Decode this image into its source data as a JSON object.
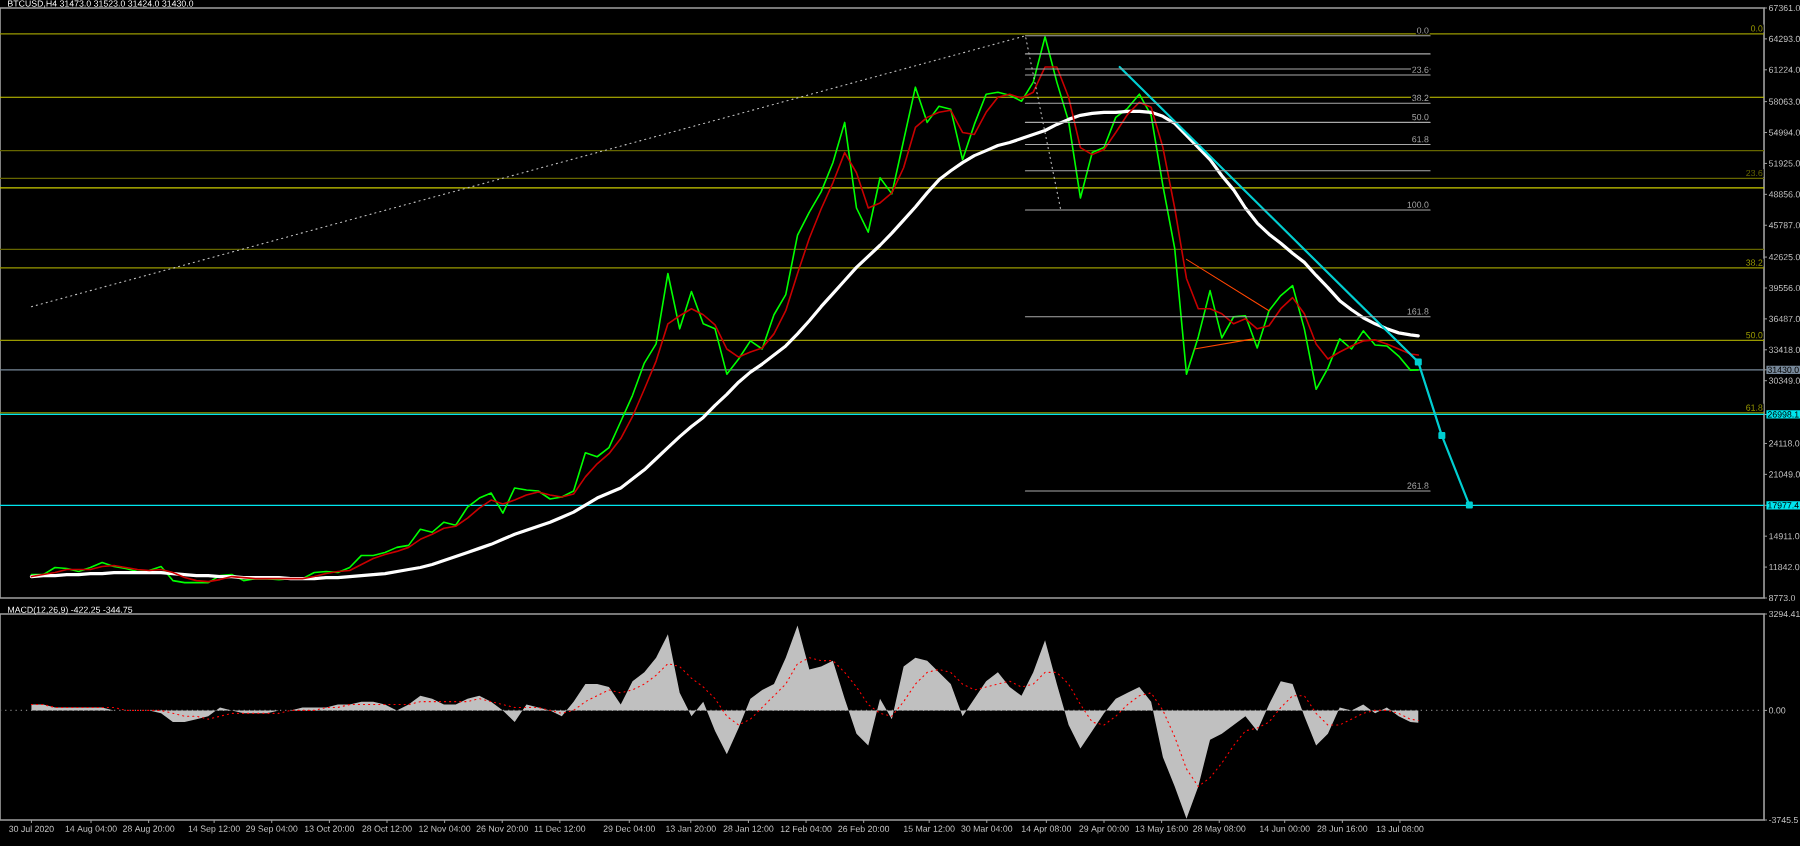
{
  "chart_data": [
    {
      "type": "line",
      "title": "BTCUSD,H4 31473.0 31523.0 31424.0 31430.0",
      "x": [
        "2020-07-30",
        "2020-08-02",
        "2020-08-05",
        "2020-08-08",
        "2020-08-11",
        "2020-08-14",
        "2020-08-17",
        "2020-08-20",
        "2020-08-23",
        "2020-08-26",
        "2020-08-29",
        "2020-09-01",
        "2020-09-04",
        "2020-09-07",
        "2020-09-10",
        "2020-09-13",
        "2020-09-16",
        "2020-09-19",
        "2020-09-22",
        "2020-09-25",
        "2020-09-28",
        "2020-10-01",
        "2020-10-04",
        "2020-10-07",
        "2020-10-10",
        "2020-10-13",
        "2020-10-16",
        "2020-10-19",
        "2020-10-22",
        "2020-10-25",
        "2020-10-28",
        "2020-10-31",
        "2020-11-03",
        "2020-11-06",
        "2020-11-09",
        "2020-11-12",
        "2020-11-15",
        "2020-11-18",
        "2020-11-21",
        "2020-11-24",
        "2020-11-27",
        "2020-11-30",
        "2020-12-03",
        "2020-12-06",
        "2020-12-09",
        "2020-12-12",
        "2020-12-15",
        "2020-12-18",
        "2020-12-21",
        "2020-12-24",
        "2020-12-27",
        "2020-12-30",
        "2021-01-02",
        "2021-01-05",
        "2021-01-08",
        "2021-01-11",
        "2021-01-14",
        "2021-01-17",
        "2021-01-20",
        "2021-01-23",
        "2021-01-26",
        "2021-01-29",
        "2021-02-01",
        "2021-02-04",
        "2021-02-07",
        "2021-02-10",
        "2021-02-13",
        "2021-02-16",
        "2021-02-19",
        "2021-02-22",
        "2021-02-25",
        "2021-02-28",
        "2021-03-03",
        "2021-03-06",
        "2021-03-09",
        "2021-03-12",
        "2021-03-15",
        "2021-03-18",
        "2021-03-21",
        "2021-03-24",
        "2021-03-27",
        "2021-03-30",
        "2021-04-02",
        "2021-04-05",
        "2021-04-08",
        "2021-04-11",
        "2021-04-14",
        "2021-04-17",
        "2021-04-20",
        "2021-04-23",
        "2021-04-26",
        "2021-04-29",
        "2021-05-02",
        "2021-05-05",
        "2021-05-08",
        "2021-05-11",
        "2021-05-14",
        "2021-05-17",
        "2021-05-20",
        "2021-05-23",
        "2021-05-26",
        "2021-05-29",
        "2021-06-01",
        "2021-06-04",
        "2021-06-07",
        "2021-06-10",
        "2021-06-13",
        "2021-06-16",
        "2021-06-19",
        "2021-06-22",
        "2021-06-25",
        "2021-06-28",
        "2021-07-01",
        "2021-07-04",
        "2021-07-07",
        "2021-07-10",
        "2021-07-13",
        "2021-07-16",
        "2021-07-18"
      ],
      "xlim": [
        "2020-07-22",
        "2021-10-14"
      ],
      "ylim": [
        8773,
        67361
      ],
      "yticks": [
        {
          "value": 67361,
          "label": "67361.0"
        },
        {
          "value": 64293,
          "label": "64293.0"
        },
        {
          "value": 61224,
          "label": "61224.0"
        },
        {
          "value": 58063,
          "label": "58063.0"
        },
        {
          "value": 54994,
          "label": "54994.0"
        },
        {
          "value": 51925,
          "label": "51925.0"
        },
        {
          "value": 48856,
          "label": "48856.0"
        },
        {
          "value": 45787,
          "label": "45787.0"
        },
        {
          "value": 42625,
          "label": "42625.0"
        },
        {
          "value": 39556,
          "label": "39556.0"
        },
        {
          "value": 36487,
          "label": "36487.0"
        },
        {
          "value": 33418,
          "label": "33418.0"
        },
        {
          "value": 31430,
          "label": "31430.0"
        },
        {
          "value": 30349,
          "label": "30349.0"
        },
        {
          "value": 26998.1,
          "label": "26998.1"
        },
        {
          "value": 24118,
          "label": "24118.0"
        },
        {
          "value": 21049,
          "label": "21049.0"
        },
        {
          "value": 17977.4,
          "label": "17977.4"
        },
        {
          "value": 14911,
          "label": "14911.0"
        },
        {
          "value": 11842,
          "label": "11842.0"
        },
        {
          "value": 8773,
          "label": "8773.0"
        }
      ],
      "tick_labels": "y",
      "series": [
        {
          "color": "#00ff00",
          "values": [
            11100,
            11100,
            11800,
            11700,
            11400,
            11800,
            12300,
            11900,
            11700,
            11400,
            11500,
            11900,
            10500,
            10300,
            10300,
            10300,
            11000,
            11100,
            10500,
            10700,
            10700,
            10600,
            10700,
            10700,
            11300,
            11400,
            11300,
            11800,
            13000,
            13000,
            13300,
            13800,
            14000,
            15600,
            15300,
            16300,
            16000,
            17800,
            18700,
            19200,
            17200,
            19700,
            19500,
            19400,
            18600,
            18800,
            19400,
            23200,
            22800,
            23700,
            26300,
            28900,
            32100,
            34000,
            41000,
            35500,
            39200,
            36000,
            35500,
            31000,
            32500,
            34300,
            33500,
            36900,
            38900,
            44800,
            47100,
            49100,
            52000,
            56000,
            47500,
            45100,
            50500,
            48900,
            54200,
            59500,
            56000,
            57600,
            57300,
            52300,
            55800,
            58800,
            59000,
            58700,
            58100,
            60000,
            64500,
            60000,
            56100,
            48500,
            53000,
            53500,
            56500,
            57400,
            58800,
            56700,
            49700,
            43500,
            31000,
            34700,
            39300,
            34600,
            36700,
            36800,
            33600,
            37300,
            38800,
            39800,
            35500,
            29500,
            31600,
            34500,
            33500,
            35300,
            33900,
            33800,
            32800,
            31400,
            31430
          ]
        },
        {
          "color": "#ffffff",
          "values": [
            10900,
            11000,
            11000,
            11100,
            11100,
            11200,
            11200,
            11300,
            11300,
            11300,
            11300,
            11300,
            11200,
            11100,
            11000,
            11000,
            10900,
            10900,
            10800,
            10800,
            10800,
            10800,
            10700,
            10700,
            10700,
            10800,
            10800,
            10900,
            11000,
            11100,
            11200,
            11400,
            11600,
            11800,
            12100,
            12500,
            12900,
            13300,
            13700,
            14100,
            14600,
            15100,
            15500,
            15900,
            16300,
            16800,
            17300,
            18000,
            18700,
            19200,
            19700,
            20600,
            21500,
            22600,
            23700,
            24800,
            25800,
            26700,
            27900,
            29000,
            30200,
            31200,
            32000,
            32900,
            33800,
            35000,
            36300,
            37700,
            39000,
            40300,
            41600,
            42700,
            43800,
            45000,
            46300,
            47600,
            49000,
            50300,
            51200,
            52000,
            52700,
            53200,
            53700,
            54000,
            54400,
            54800,
            55200,
            55800,
            56300,
            56700,
            56900,
            57000,
            57000,
            57100,
            57100,
            57000,
            56600,
            55900,
            54700,
            53500,
            52300,
            50700,
            49300,
            47500,
            46000,
            44900,
            44000,
            43000,
            42100,
            40800,
            39600,
            38300,
            37400,
            36600,
            36000,
            35500,
            35100,
            34900,
            34800
          ]
        },
        {
          "color": "#c80000",
          "values": [
            10900,
            11100,
            11300,
            11600,
            11600,
            11600,
            11900,
            12000,
            11800,
            11600,
            11500,
            11600,
            11300,
            10800,
            10500,
            10400,
            10600,
            10900,
            10800,
            10700,
            10700,
            10700,
            10700,
            10700,
            10900,
            11200,
            11400,
            11500,
            12100,
            12700,
            13100,
            13400,
            13800,
            14600,
            15100,
            15700,
            15900,
            16700,
            17700,
            18500,
            18100,
            18500,
            19000,
            19300,
            19000,
            18800,
            19100,
            20800,
            22100,
            23100,
            24600,
            26800,
            29500,
            32300,
            36000,
            36800,
            37500,
            36900,
            35900,
            33500,
            32700,
            33200,
            33600,
            35000,
            37300,
            41000,
            44500,
            47400,
            50000,
            53000,
            51000,
            47500,
            48000,
            49000,
            51500,
            55500,
            56500,
            57000,
            57200,
            55000,
            54800,
            57000,
            58500,
            58800,
            58400,
            59000,
            61500,
            61500,
            58500,
            53500,
            52800,
            53300,
            55000,
            56800,
            58000,
            57500,
            53500,
            47500,
            40500,
            37500,
            37500,
            37000,
            36000,
            36500,
            35500,
            35800,
            37500,
            38600,
            37000,
            34000,
            32500,
            33200,
            33800,
            34300,
            34400,
            34000,
            33500,
            33000,
            32900
          ]
        },
        {
          "x": [
            "2020-07-30",
            "2021-04-09",
            "2021-04-18"
          ],
          "color": "#c0c0c0",
          "line_style": "dotted",
          "values": [
            37700,
            64600,
            47300
          ]
        },
        {
          "x": [
            "2021-05-03",
            "2021-07-18"
          ],
          "color": "#00ced1",
          "values": [
            61500,
            32200
          ]
        },
        {
          "x": [
            "2021-07-18",
            "2021-07-24",
            "2021-07-31"
          ],
          "color": "#00ced1",
          "marker": "square",
          "values": [
            32200,
            24900,
            18000
          ]
        },
        {
          "x": [
            "2021-05-20",
            "2021-06-10"
          ],
          "color": "#ff4500",
          "values": [
            42400,
            37300
          ]
        },
        {
          "x": [
            "2021-05-22",
            "2021-06-06"
          ],
          "color": "#ff4500",
          "values": [
            33500,
            34500
          ]
        },
        {
          "name": "0.0",
          "x": [
            "2021-04-09",
            "2021-07-21"
          ],
          "color": "#a9a9a9",
          "values": [
            64600,
            64600
          ]
        },
        {
          "x": [
            "2021-04-09",
            "2021-07-21"
          ],
          "color": "#a9a9a9",
          "values": [
            62800,
            62800
          ]
        },
        {
          "x": [
            "2021-04-09",
            "2021-07-21"
          ],
          "color": "#a9a9a9",
          "values": [
            61300,
            61300
          ]
        },
        {
          "name": "23.6",
          "x": [
            "2021-04-09",
            "2021-07-21"
          ],
          "color": "#a9a9a9",
          "values": [
            60700,
            60700
          ]
        },
        {
          "name": "38.2",
          "x": [
            "2021-04-09",
            "2021-07-21"
          ],
          "color": "#a9a9a9",
          "values": [
            57900,
            57900
          ]
        },
        {
          "name": "50.0",
          "x": [
            "2021-04-09",
            "2021-07-21"
          ],
          "color": "#a9a9a9",
          "values": [
            56000,
            56000
          ]
        },
        {
          "name": "61.8",
          "x": [
            "2021-04-09",
            "2021-07-21"
          ],
          "color": "#a9a9a9",
          "values": [
            53800,
            53800
          ]
        },
        {
          "x": [
            "2021-04-09",
            "2021-07-21"
          ],
          "color": "#a9a9a9",
          "values": [
            51200,
            51200
          ]
        },
        {
          "name": "100.0",
          "x": [
            "2021-04-09",
            "2021-07-21"
          ],
          "color": "#a9a9a9",
          "values": [
            47300,
            47300
          ]
        },
        {
          "name": "161.8",
          "x": [
            "2021-04-09",
            "2021-07-21"
          ],
          "color": "#a9a9a9",
          "values": [
            36700,
            36700
          ]
        },
        {
          "name": "261.8",
          "x": [
            "2021-04-09",
            "2021-07-21"
          ],
          "color": "#a9a9a9",
          "values": [
            19400,
            19400
          ]
        }
      ],
      "ref_lines": [
        {
          "axis": "y",
          "value": 64800,
          "color": "#9a9a00"
        },
        {
          "axis": "y",
          "value": 58500,
          "color": "#cccc00"
        },
        {
          "axis": "y",
          "value": 53200,
          "color": "#666600"
        },
        {
          "axis": "y",
          "value": 50450,
          "color": "#666600"
        },
        {
          "axis": "y",
          "value": 49500,
          "color": "#cccc00"
        },
        {
          "axis": "y",
          "value": 43400,
          "color": "#666600"
        },
        {
          "axis": "y",
          "value": 41550,
          "color": "#9a9a00"
        },
        {
          "axis": "y",
          "value": 34350,
          "color": "#9a9a00"
        },
        {
          "axis": "y",
          "value": 27150,
          "color": "#9a9a00"
        },
        {
          "axis": "y",
          "value": 31430,
          "color": "#778899"
        },
        {
          "axis": "y",
          "value": 26998.1,
          "color": "#00e5ee"
        },
        {
          "axis": "y",
          "value": 17977.4,
          "color": "#00e5ee"
        }
      ],
      "annotations": [
        {
          "text": "0.0",
          "x": "2021-10-14",
          "y": 64800
        },
        {
          "text": "23.6",
          "x": "2021-10-14",
          "y": 50450
        },
        {
          "text": "38.2",
          "x": "2021-10-14",
          "y": 41550
        },
        {
          "text": "50.0",
          "x": "2021-10-14",
          "y": 34350
        },
        {
          "text": "61.8",
          "x": "2021-10-14",
          "y": 27150
        }
      ]
    },
    {
      "type": "area",
      "title": "MACD(12,26,9) -422.25 -344.75",
      "x": [
        "2020-07-30",
        "2020-08-02",
        "2020-08-05",
        "2020-08-08",
        "2020-08-11",
        "2020-08-14",
        "2020-08-17",
        "2020-08-20",
        "2020-08-23",
        "2020-08-26",
        "2020-08-29",
        "2020-09-01",
        "2020-09-04",
        "2020-09-07",
        "2020-09-10",
        "2020-09-13",
        "2020-09-16",
        "2020-09-19",
        "2020-09-22",
        "2020-09-25",
        "2020-09-28",
        "2020-10-01",
        "2020-10-04",
        "2020-10-07",
        "2020-10-10",
        "2020-10-13",
        "2020-10-16",
        "2020-10-19",
        "2020-10-22",
        "2020-10-25",
        "2020-10-28",
        "2020-10-31",
        "2020-11-03",
        "2020-11-06",
        "2020-11-09",
        "2020-11-12",
        "2020-11-15",
        "2020-11-18",
        "2020-11-21",
        "2020-11-24",
        "2020-11-27",
        "2020-11-30",
        "2020-12-03",
        "2020-12-06",
        "2020-12-09",
        "2020-12-12",
        "2020-12-15",
        "2020-12-18",
        "2020-12-21",
        "2020-12-24",
        "2020-12-27",
        "2020-12-30",
        "2021-01-02",
        "2021-01-05",
        "2021-01-08",
        "2021-01-11",
        "2021-01-14",
        "2021-01-17",
        "2021-01-20",
        "2021-01-23",
        "2021-01-26",
        "2021-01-29",
        "2021-02-01",
        "2021-02-04",
        "2021-02-07",
        "2021-02-10",
        "2021-02-13",
        "2021-02-16",
        "2021-02-19",
        "2021-02-22",
        "2021-02-25",
        "2021-02-28",
        "2021-03-03",
        "2021-03-06",
        "2021-03-09",
        "2021-03-12",
        "2021-03-15",
        "2021-03-18",
        "2021-03-21",
        "2021-03-24",
        "2021-03-27",
        "2021-03-30",
        "2021-04-02",
        "2021-04-05",
        "2021-04-08",
        "2021-04-11",
        "2021-04-14",
        "2021-04-17",
        "2021-04-20",
        "2021-04-23",
        "2021-04-26",
        "2021-04-29",
        "2021-05-02",
        "2021-05-05",
        "2021-05-08",
        "2021-05-11",
        "2021-05-14",
        "2021-05-17",
        "2021-05-20",
        "2021-05-23",
        "2021-05-26",
        "2021-05-29",
        "2021-06-01",
        "2021-06-04",
        "2021-06-07",
        "2021-06-10",
        "2021-06-13",
        "2021-06-16",
        "2021-06-19",
        "2021-06-22",
        "2021-06-25",
        "2021-06-28",
        "2021-07-01",
        "2021-07-04",
        "2021-07-07",
        "2021-07-10",
        "2021-07-13",
        "2021-07-16",
        "2021-07-18"
      ],
      "xlim": [
        "2020-07-22",
        "2021-10-14"
      ],
      "xticks": [
        {
          "value": "2020-07-30",
          "label": "30 Jul 2020"
        },
        {
          "value": "2020-08-14T04:00",
          "label": "14 Aug 04:00"
        },
        {
          "value": "2020-08-28T20:00",
          "label": "28 Aug 20:00"
        },
        {
          "value": "2020-09-14T12:00",
          "label": "14 Sep 12:00"
        },
        {
          "value": "2020-09-29T04:00",
          "label": "29 Sep 04:00"
        },
        {
          "value": "2020-10-13T20:00",
          "label": "13 Oct 20:00"
        },
        {
          "value": "2020-10-28T12:00",
          "label": "28 Oct 12:00"
        },
        {
          "value": "2020-11-12T04:00",
          "label": "12 Nov 04:00"
        },
        {
          "value": "2020-11-26T20:00",
          "label": "26 Nov 20:00"
        },
        {
          "value": "2020-12-11T12:00",
          "label": "11 Dec 12:00"
        },
        {
          "value": "2020-12-29T04:00",
          "label": "29 Dec 04:00"
        },
        {
          "value": "2021-01-13T20:00",
          "label": "13 Jan 20:00"
        },
        {
          "value": "2021-01-28T12:00",
          "label": "28 Jan 12:00"
        },
        {
          "value": "2021-02-12T04:00",
          "label": "12 Feb 04:00"
        },
        {
          "value": "2021-02-26T20:00",
          "label": "26 Feb 20:00"
        },
        {
          "value": "2021-03-15T12:00",
          "label": "15 Mar 12:00"
        },
        {
          "value": "2021-03-30T04:00",
          "label": "30 Mar 04:00"
        },
        {
          "value": "2021-04-14T08:00",
          "label": "14 Apr 08:00"
        },
        {
          "value": "2021-04-29T00:00",
          "label": "29 Apr 00:00"
        },
        {
          "value": "2021-05-13T16:00",
          "label": "13 May 16:00"
        },
        {
          "value": "2021-05-28T08:00",
          "label": "28 May 08:00"
        },
        {
          "value": "2021-06-14T00:00",
          "label": "14 Jun 00:00"
        },
        {
          "value": "2021-06-28T16:00",
          "label": "28 Jun 16:00"
        },
        {
          "value": "2021-07-13T08:00",
          "label": "13 Jul 08:00"
        }
      ],
      "ylim": [
        -3745.5,
        3294.41
      ],
      "yticks": [
        3294.41,
        {
          "value": 0,
          "label": "0.00"
        },
        -3745.5
      ],
      "series": [
        {
          "color": "#c0c0c0",
          "values": [
            200,
            200,
            100,
            100,
            100,
            100,
            100,
            0,
            0,
            0,
            0,
            -100,
            -400,
            -400,
            -300,
            -200,
            100,
            0,
            -100,
            -100,
            -100,
            0,
            0,
            100,
            100,
            100,
            200,
            200,
            300,
            300,
            200,
            0,
            200,
            500,
            400,
            200,
            200,
            400,
            500,
            300,
            0,
            -400,
            200,
            100,
            0,
            -200,
            300,
            900,
            900,
            800,
            200,
            1000,
            1300,
            1800,
            2600,
            600,
            -200,
            300,
            -700,
            -1500,
            -600,
            400,
            700,
            900,
            1800,
            2900,
            1400,
            1500,
            1700,
            400,
            -800,
            -1200,
            400,
            -300,
            1500,
            1800,
            1700,
            1300,
            900,
            -200,
            400,
            1000,
            1300,
            800,
            500,
            1300,
            2400,
            900,
            -500,
            -1300,
            -700,
            -100,
            400,
            600,
            800,
            300,
            -1600,
            -2600,
            -3700,
            -2600,
            -1000,
            -800,
            -500,
            -200,
            -700,
            200,
            1000,
            900,
            -200,
            -1200,
            -800,
            100,
            0,
            200,
            -100,
            100,
            -200,
            -400,
            -422.25
          ]
        },
        {
          "type": "line",
          "color": "#ff0000",
          "line_style": "dotted",
          "values": [
            200,
            200,
            100,
            100,
            100,
            100,
            100,
            100,
            0,
            0,
            0,
            0,
            -100,
            -200,
            -200,
            -300,
            -200,
            -100,
            -100,
            -100,
            -100,
            -100,
            0,
            0,
            0,
            100,
            100,
            200,
            200,
            200,
            200,
            200,
            200,
            300,
            300,
            300,
            300,
            300,
            400,
            300,
            200,
            100,
            100,
            100,
            0,
            -100,
            0,
            300,
            500,
            700,
            600,
            700,
            900,
            1200,
            1600,
            1500,
            1100,
            800,
            400,
            -200,
            -500,
            -300,
            100,
            500,
            900,
            1600,
            1800,
            1700,
            1700,
            1300,
            800,
            200,
            -100,
            -200,
            300,
            900,
            1300,
            1400,
            1300,
            900,
            700,
            800,
            900,
            1000,
            800,
            900,
            1300,
            1300,
            900,
            200,
            -400,
            -500,
            -200,
            200,
            500,
            600,
            0,
            -900,
            -2000,
            -2600,
            -2300,
            -1800,
            -1200,
            -700,
            -600,
            -400,
            100,
            500,
            500,
            -100,
            -500,
            -500,
            -300,
            -100,
            0,
            0,
            -100,
            -300,
            -344.75
          ]
        }
      ],
      "ref_lines": [
        {
          "axis": "y",
          "value": 0,
          "color": "#808080",
          "line_style": "dotted"
        }
      ]
    }
  ]
}
